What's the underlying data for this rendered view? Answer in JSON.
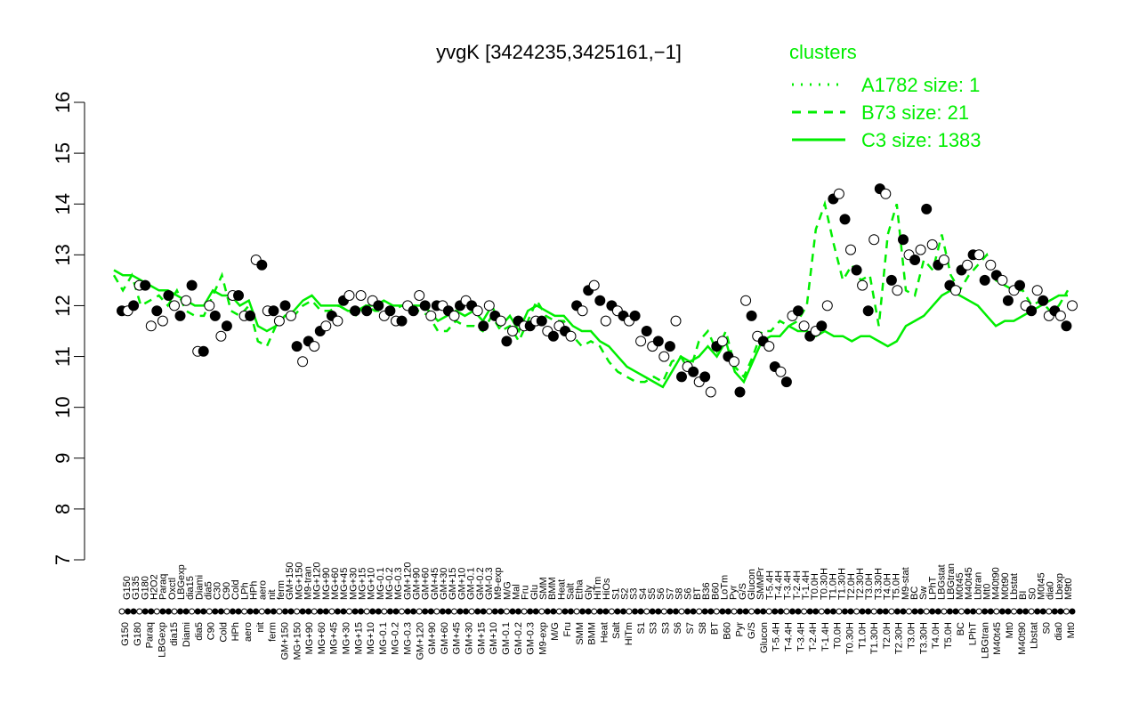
{
  "chart_data": {
    "type": "line",
    "title": "yvgK [3424235,3425161,−1]",
    "xlabel": "",
    "ylabel": "",
    "ylim": [
      7,
      16
    ],
    "y_ticks": [
      7,
      8,
      9,
      10,
      11,
      12,
      13,
      14,
      15,
      16
    ],
    "legend": {
      "title": "clusters",
      "position": "top-right",
      "color": "#00ee00",
      "entries": [
        {
          "label": "A1782 size: 1",
          "style": "dotted"
        },
        {
          "label": "B73 size: 21",
          "style": "dashed"
        },
        {
          "label": "C3 size: 1383",
          "style": "solid"
        }
      ]
    },
    "colors": {
      "lines": "#00ee00",
      "axis": "#000000",
      "point_edge": "#000000"
    },
    "x_labels_top": [
      "G150",
      "G135",
      "G180",
      "H2O2",
      "Paraq",
      "Oxctl",
      "LBGexp",
      "dia15",
      "Diami",
      "dia5",
      "C30",
      "C90",
      "Cold",
      "LPh",
      "HPh",
      "aero",
      "nit",
      "ferm",
      "GM+150",
      "MG+150",
      "M9-tran",
      "MG+120",
      "MG+90",
      "MG+60",
      "MG+45",
      "MG+30",
      "MG+15",
      "MG+10",
      "MG-0.1",
      "MG-0.2",
      "MG-0.3",
      "GM+120",
      "GM+90",
      "GM+60",
      "GM+45",
      "GM+30",
      "GM+15",
      "GM+10",
      "GM-0.1",
      "GM-0.2",
      "GM-0.3",
      "M9-exp",
      "M/G",
      "Mal",
      "Fru",
      "Glu",
      "SMM",
      "BMM",
      "Heat",
      "Salt",
      "Etha",
      "Gly",
      "HiTm",
      "HiOs",
      "S1",
      "S2",
      "S3",
      "S4",
      "S5",
      "S6",
      "S7",
      "S8",
      "S6",
      "BT",
      "B36",
      "B60",
      "LoTm",
      "Pyr",
      "G/S",
      "Glucon",
      "SMMPr",
      "T-5.4H",
      "T-4.4H",
      "T-3.4H",
      "T-2.4H",
      "T-1.4H",
      "T0.0H",
      "T0.30H",
      "T1.0H",
      "T1.30H",
      "T2.0H",
      "T2.30H",
      "T3.0H",
      "T3.30H",
      "T4.0H",
      "T5.0H",
      "M9-stat",
      "BC",
      "Sw",
      "LPhT",
      "LBGstat",
      "LBGtran",
      "M0t45",
      "M40t45",
      "Lbtran",
      "Mt0",
      "M40t90",
      "M0t90",
      "Lbstat",
      "BI",
      "S0",
      "M0t45",
      "dia0",
      "Lbexp",
      "M9t0"
    ],
    "x_labels_bottom": [
      "G150",
      "G180",
      "Paraq",
      "LBGexp",
      "dia15",
      "Diami",
      "dia5",
      "C90",
      "Cold",
      "HPh",
      "aero",
      "nit",
      "ferm",
      "GM+150",
      "MG+150",
      "MG+90",
      "MG+60",
      "MG+45",
      "MG+30",
      "MG+15",
      "MG+10",
      "MG-0.1",
      "MG-0.2",
      "MG-0.3",
      "GM+120",
      "GM+90",
      "GM+60",
      "GM+45",
      "GM+30",
      "GM+15",
      "GM+10",
      "GM-0.1",
      "GM-0.2",
      "GM-0.3",
      "M9-exp",
      "M/G",
      "Fru",
      "SMM",
      "BMM",
      "Heat",
      "Salt",
      "HiTm",
      "S1",
      "S3",
      "S3",
      "S6",
      "S7",
      "S8",
      "BT",
      "B60",
      "Pyr",
      "G/S",
      "Glucon",
      "T-5.4H",
      "T-4.4H",
      "T-3.4H",
      "T-2.4H",
      "T-1.4H",
      "T0.0H",
      "T0.30H",
      "T1.0H",
      "T1.30H",
      "T2.0H",
      "T2.30H",
      "T3.0H",
      "T3.30H",
      "T4.0H",
      "T5.0H",
      "BC",
      "LPhT",
      "LBGtran",
      "M40t45",
      "Mt0",
      "M40t90",
      "Lbstat",
      "S0",
      "dia0",
      "Mt0"
    ],
    "series": [
      {
        "style": "dashed",
        "x": [
          0,
          2,
          4,
          6,
          8,
          10,
          12,
          14,
          16,
          18,
          20,
          22,
          24,
          26,
          28,
          30,
          32,
          34,
          36,
          38,
          40,
          42,
          44,
          46,
          48,
          50,
          52,
          54,
          56,
          58,
          60,
          62,
          64,
          66,
          68,
          70,
          72,
          74,
          76,
          78,
          80,
          82,
          84,
          86,
          88,
          90,
          92,
          94,
          96,
          98,
          100,
          102,
          104,
          106,
          108,
          110,
          112,
          114,
          116,
          118,
          120,
          122,
          124,
          126,
          128,
          130,
          132,
          134,
          136,
          138,
          140,
          142,
          144,
          146,
          148,
          150,
          152,
          154,
          156,
          158,
          160,
          162,
          164,
          166,
          168,
          170,
          172,
          174,
          176,
          178,
          180,
          182,
          184,
          186,
          188,
          190,
          192,
          194,
          196,
          198,
          200,
          202,
          204,
          206,
          208,
          210,
          212
        ],
        "y": [
          12.6,
          12.3,
          12.6,
          12.0,
          12.1,
          12.2,
          12.0,
          12.3,
          11.9,
          11.8,
          11.8,
          12.2,
          12.6,
          11.9,
          11.8,
          12.0,
          11.3,
          11.2,
          11.6,
          11.8,
          11.8,
          12.0,
          12.1,
          11.9,
          11.9,
          12.0,
          11.9,
          11.8,
          12.0,
          11.9,
          11.9,
          11.9,
          12.0,
          11.9,
          11.9,
          11.8,
          11.5,
          11.5,
          11.7,
          11.6,
          11.6,
          11.5,
          11.8,
          11.5,
          11.6,
          11.3,
          11.7,
          12.1,
          11.8,
          11.7,
          11.7,
          11.4,
          11.2,
          11.3,
          11.2,
          10.9,
          10.7,
          10.6,
          10.5,
          10.5,
          10.6,
          10.5,
          10.9,
          11.0,
          10.7,
          11.3,
          11.5,
          11.1,
          11.5,
          10.8,
          10.6,
          11.0,
          11.5,
          11.5,
          11.7,
          11.6,
          11.7,
          12.0,
          13.5,
          14.0,
          13.2,
          12.5,
          12.8,
          12.5,
          12.6,
          11.6,
          13.4,
          14.0,
          12.3,
          12.2,
          12.9,
          12.7,
          13.4,
          12.6,
          12.3,
          12.6,
          12.8,
          13.0,
          12.5,
          12.4,
          12.3,
          12.3,
          12.0,
          12.1,
          11.9,
          12.0,
          12.3
        ]
      },
      {
        "style": "solid",
        "x": [
          0,
          2,
          4,
          6,
          8,
          10,
          12,
          14,
          16,
          18,
          20,
          22,
          24,
          26,
          28,
          30,
          32,
          34,
          36,
          38,
          40,
          42,
          44,
          46,
          48,
          50,
          52,
          54,
          56,
          58,
          60,
          62,
          64,
          66,
          68,
          70,
          72,
          74,
          76,
          78,
          80,
          82,
          84,
          86,
          88,
          90,
          92,
          94,
          96,
          98,
          100,
          102,
          104,
          106,
          108,
          110,
          112,
          114,
          116,
          118,
          120,
          122,
          124,
          126,
          128,
          130,
          132,
          134,
          136,
          138,
          140,
          142,
          144,
          146,
          148,
          150,
          152,
          154,
          156,
          158,
          160,
          162,
          164,
          166,
          168,
          170,
          172,
          174,
          176,
          178,
          180,
          182,
          184,
          186,
          188,
          190,
          192,
          194,
          196,
          198,
          200,
          202,
          204,
          206,
          208,
          210,
          212
        ],
        "y": [
          12.7,
          12.6,
          12.6,
          12.5,
          12.4,
          12.3,
          12.3,
          12.2,
          12.1,
          12.0,
          12.0,
          12.3,
          12.2,
          12.2,
          12.0,
          12.1,
          11.6,
          11.5,
          11.6,
          11.8,
          11.9,
          12.1,
          12.2,
          12.0,
          12.0,
          12.0,
          11.9,
          11.9,
          12.0,
          12.0,
          12.1,
          12.0,
          12.0,
          12.0,
          12.0,
          11.9,
          11.7,
          11.8,
          11.9,
          11.8,
          11.9,
          11.7,
          12.0,
          11.6,
          11.8,
          11.5,
          11.9,
          12.0,
          11.9,
          11.8,
          11.8,
          11.6,
          11.5,
          11.5,
          11.3,
          11.2,
          11.0,
          10.8,
          10.7,
          10.6,
          10.5,
          10.4,
          10.7,
          11.0,
          10.9,
          11.0,
          11.2,
          11.0,
          11.3,
          10.7,
          10.5,
          10.9,
          11.3,
          11.4,
          11.4,
          11.6,
          11.5,
          11.5,
          11.4,
          11.5,
          11.4,
          11.4,
          11.3,
          11.4,
          11.4,
          11.3,
          11.2,
          11.3,
          11.6,
          11.7,
          11.8,
          12.0,
          12.2,
          12.3,
          12.2,
          12.1,
          12.0,
          11.8,
          11.6,
          11.7,
          11.7,
          11.8,
          11.9,
          12.0,
          12.1,
          12.2,
          12.2
        ]
      }
    ],
    "points": [
      {
        "x": 0,
        "y": 11.9
      },
      {
        "x": 1,
        "y": 11.9
      },
      {
        "x": 2,
        "y": 12.0
      },
      {
        "x": 3,
        "y": 12.4
      },
      {
        "x": 4,
        "y": 12.4
      },
      {
        "x": 5,
        "y": 11.6
      },
      {
        "x": 6,
        "y": 11.9
      },
      {
        "x": 7,
        "y": 11.7
      },
      {
        "x": 8,
        "y": 12.2
      },
      {
        "x": 9,
        "y": 12.0
      },
      {
        "x": 10,
        "y": 11.8
      },
      {
        "x": 11,
        "y": 12.1
      },
      {
        "x": 12,
        "y": 12.4
      },
      {
        "x": 13,
        "y": 11.1
      },
      {
        "x": 14,
        "y": 11.1
      },
      {
        "x": 15,
        "y": 12.0
      },
      {
        "x": 16,
        "y": 11.8
      },
      {
        "x": 17,
        "y": 11.4
      },
      {
        "x": 18,
        "y": 11.6
      },
      {
        "x": 19,
        "y": 12.2
      },
      {
        "x": 20,
        "y": 12.2
      },
      {
        "x": 21,
        "y": 11.8
      },
      {
        "x": 22,
        "y": 11.8
      },
      {
        "x": 23,
        "y": 12.9
      },
      {
        "x": 24,
        "y": 12.8
      },
      {
        "x": 25,
        "y": 11.9
      },
      {
        "x": 26,
        "y": 11.9
      },
      {
        "x": 27,
        "y": 11.7
      },
      {
        "x": 28,
        "y": 12.0
      },
      {
        "x": 29,
        "y": 11.8
      },
      {
        "x": 30,
        "y": 11.2
      },
      {
        "x": 31,
        "y": 10.9
      },
      {
        "x": 32,
        "y": 11.3
      },
      {
        "x": 33,
        "y": 11.2
      },
      {
        "x": 34,
        "y": 11.5
      },
      {
        "x": 35,
        "y": 11.6
      },
      {
        "x": 36,
        "y": 11.8
      },
      {
        "x": 37,
        "y": 11.7
      },
      {
        "x": 38,
        "y": 12.1
      },
      {
        "x": 39,
        "y": 12.2
      },
      {
        "x": 40,
        "y": 11.9
      },
      {
        "x": 41,
        "y": 12.2
      },
      {
        "x": 42,
        "y": 11.9
      },
      {
        "x": 43,
        "y": 12.1
      },
      {
        "x": 44,
        "y": 12.0
      },
      {
        "x": 45,
        "y": 11.8
      },
      {
        "x": 46,
        "y": 11.9
      },
      {
        "x": 47,
        "y": 11.7
      },
      {
        "x": 48,
        "y": 11.7
      },
      {
        "x": 49,
        "y": 12.0
      },
      {
        "x": 50,
        "y": 11.9
      },
      {
        "x": 51,
        "y": 12.2
      },
      {
        "x": 52,
        "y": 12.0
      },
      {
        "x": 53,
        "y": 11.8
      },
      {
        "x": 54,
        "y": 12.0
      },
      {
        "x": 55,
        "y": 12.0
      },
      {
        "x": 56,
        "y": 11.9
      },
      {
        "x": 57,
        "y": 11.8
      },
      {
        "x": 58,
        "y": 12.0
      },
      {
        "x": 59,
        "y": 12.1
      },
      {
        "x": 60,
        "y": 12.0
      },
      {
        "x": 61,
        "y": 11.9
      },
      {
        "x": 62,
        "y": 11.6
      },
      {
        "x": 63,
        "y": 12.0
      },
      {
        "x": 64,
        "y": 11.8
      },
      {
        "x": 65,
        "y": 11.7
      },
      {
        "x": 66,
        "y": 11.3
      },
      {
        "x": 67,
        "y": 11.5
      },
      {
        "x": 68,
        "y": 11.7
      },
      {
        "x": 69,
        "y": 11.6
      },
      {
        "x": 70,
        "y": 11.6
      },
      {
        "x": 71,
        "y": 11.7
      },
      {
        "x": 72,
        "y": 11.7
      },
      {
        "x": 73,
        "y": 11.5
      },
      {
        "x": 74,
        "y": 11.4
      },
      {
        "x": 75,
        "y": 11.6
      },
      {
        "x": 76,
        "y": 11.5
      },
      {
        "x": 77,
        "y": 11.4
      },
      {
        "x": 78,
        "y": 12.0
      },
      {
        "x": 79,
        "y": 11.9
      },
      {
        "x": 80,
        "y": 12.3
      },
      {
        "x": 81,
        "y": 12.4
      },
      {
        "x": 82,
        "y": 12.1
      },
      {
        "x": 83,
        "y": 11.7
      },
      {
        "x": 84,
        "y": 12.0
      },
      {
        "x": 85,
        "y": 11.9
      },
      {
        "x": 86,
        "y": 11.8
      },
      {
        "x": 87,
        "y": 11.7
      },
      {
        "x": 88,
        "y": 11.8
      },
      {
        "x": 89,
        "y": 11.3
      },
      {
        "x": 90,
        "y": 11.5
      },
      {
        "x": 91,
        "y": 11.2
      },
      {
        "x": 92,
        "y": 11.3
      },
      {
        "x": 93,
        "y": 11.0
      },
      {
        "x": 94,
        "y": 11.2
      },
      {
        "x": 95,
        "y": 11.7
      },
      {
        "x": 96,
        "y": 10.6
      },
      {
        "x": 97,
        "y": 10.8
      },
      {
        "x": 98,
        "y": 10.7
      },
      {
        "x": 99,
        "y": 10.5
      },
      {
        "x": 100,
        "y": 10.6
      },
      {
        "x": 101,
        "y": 10.3
      },
      {
        "x": 102,
        "y": 11.2
      },
      {
        "x": 103,
        "y": 11.3
      },
      {
        "x": 104,
        "y": 11.0
      },
      {
        "x": 105,
        "y": 10.9
      },
      {
        "x": 106,
        "y": 10.3
      },
      {
        "x": 107,
        "y": 12.1
      },
      {
        "x": 108,
        "y": 11.8
      },
      {
        "x": 109,
        "y": 11.4
      },
      {
        "x": 110,
        "y": 11.3
      },
      {
        "x": 111,
        "y": 11.2
      },
      {
        "x": 112,
        "y": 10.8
      },
      {
        "x": 113,
        "y": 10.7
      },
      {
        "x": 114,
        "y": 10.5
      },
      {
        "x": 115,
        "y": 11.8
      },
      {
        "x": 116,
        "y": 11.9
      },
      {
        "x": 117,
        "y": 11.6
      },
      {
        "x": 118,
        "y": 11.4
      },
      {
        "x": 119,
        "y": 11.5
      },
      {
        "x": 120,
        "y": 11.6
      },
      {
        "x": 121,
        "y": 12.0
      },
      {
        "x": 122,
        "y": 14.1
      },
      {
        "x": 123,
        "y": 14.2
      },
      {
        "x": 124,
        "y": 13.7
      },
      {
        "x": 125,
        "y": 13.1
      },
      {
        "x": 126,
        "y": 12.7
      },
      {
        "x": 127,
        "y": 12.4
      },
      {
        "x": 128,
        "y": 11.9
      },
      {
        "x": 129,
        "y": 13.3
      },
      {
        "x": 130,
        "y": 14.3
      },
      {
        "x": 131,
        "y": 14.2
      },
      {
        "x": 132,
        "y": 12.5
      },
      {
        "x": 133,
        "y": 12.3
      },
      {
        "x": 134,
        "y": 13.3
      },
      {
        "x": 135,
        "y": 13.0
      },
      {
        "x": 136,
        "y": 12.9
      },
      {
        "x": 137,
        "y": 13.1
      },
      {
        "x": 138,
        "y": 13.9
      },
      {
        "x": 139,
        "y": 13.2
      },
      {
        "x": 140,
        "y": 12.8
      },
      {
        "x": 141,
        "y": 12.9
      },
      {
        "x": 142,
        "y": 12.4
      },
      {
        "x": 143,
        "y": 12.3
      },
      {
        "x": 144,
        "y": 12.7
      },
      {
        "x": 145,
        "y": 12.8
      },
      {
        "x": 146,
        "y": 13.0
      },
      {
        "x": 147,
        "y": 13.0
      },
      {
        "x": 148,
        "y": 12.5
      },
      {
        "x": 149,
        "y": 12.8
      },
      {
        "x": 150,
        "y": 12.6
      },
      {
        "x": 151,
        "y": 12.5
      },
      {
        "x": 152,
        "y": 12.1
      },
      {
        "x": 153,
        "y": 12.3
      },
      {
        "x": 154,
        "y": 12.4
      },
      {
        "x": 155,
        "y": 12.0
      },
      {
        "x": 156,
        "y": 11.9
      },
      {
        "x": 157,
        "y": 12.3
      },
      {
        "x": 158,
        "y": 12.1
      },
      {
        "x": 159,
        "y": 11.8
      },
      {
        "x": 160,
        "y": 11.9
      },
      {
        "x": 161,
        "y": 11.8
      },
      {
        "x": 162,
        "y": 11.6
      },
      {
        "x": 163,
        "y": 12.0
      }
    ]
  }
}
